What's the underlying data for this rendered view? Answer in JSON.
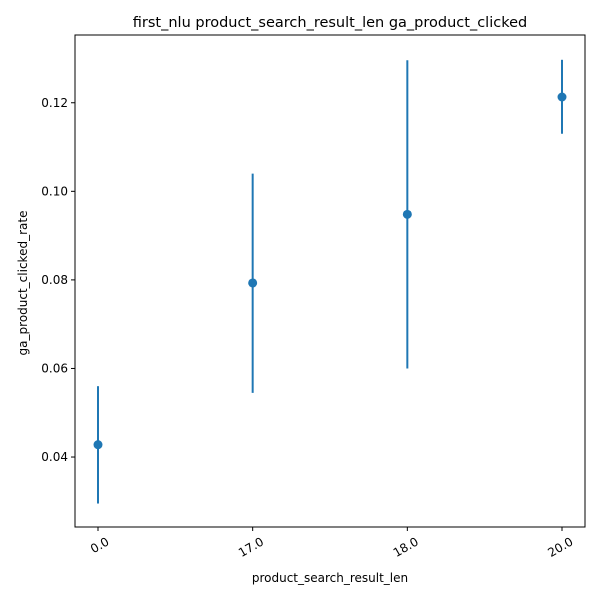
{
  "chart_data": {
    "type": "scatter",
    "title": "first_nlu product_search_result_len ga_product_clicked",
    "xlabel": "product_search_result_len",
    "ylabel": "ga_product_clicked_rate",
    "categories": [
      "0.0",
      "17.0",
      "18.0",
      "20.0"
    ],
    "series": [
      {
        "values": [
          0.0428,
          0.0793,
          0.0948,
          0.1213
        ],
        "error_low": [
          0.0295,
          0.0545,
          0.06,
          0.113
        ],
        "error_high": [
          0.056,
          0.104,
          0.1296,
          0.1297
        ]
      }
    ],
    "ylim": [
      0.0242,
      0.1353
    ],
    "yticks": [
      "0.04",
      "0.06",
      "0.08",
      "0.10",
      "0.12"
    ],
    "grid": false,
    "color": "#1f77b4"
  }
}
